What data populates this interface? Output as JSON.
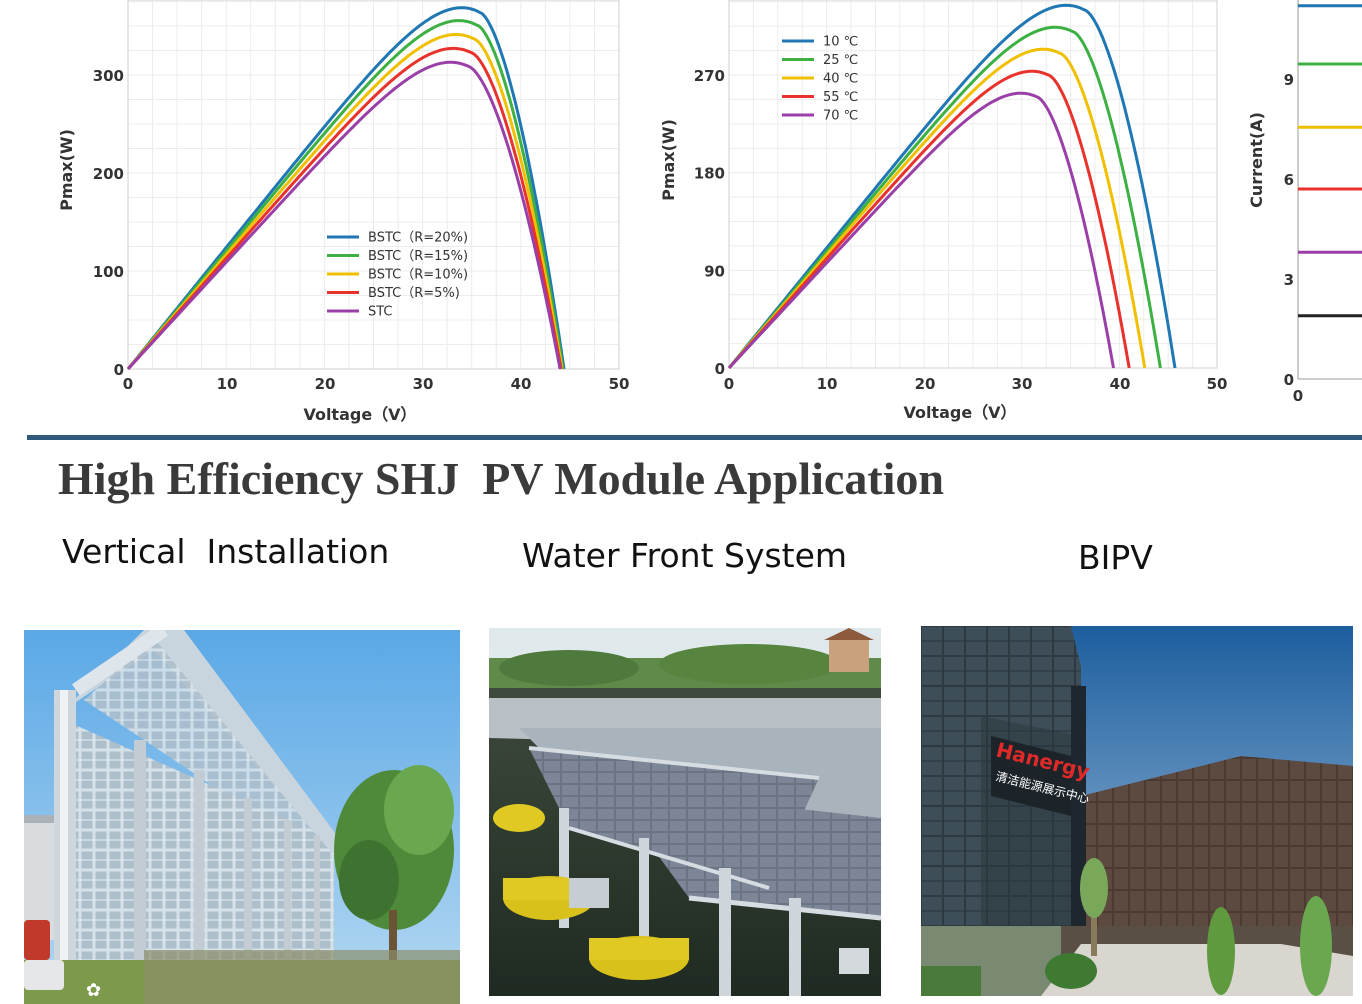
{
  "chart_data": [
    {
      "type": "line",
      "title": "",
      "xlabel": "Voltage（V）",
      "ylabel": "Pmax(W)",
      "xlim": [
        0,
        50
      ],
      "ylim": [
        0,
        380
      ],
      "xticks": [
        "0",
        "10",
        "20",
        "30",
        "40",
        "50"
      ],
      "yticks": [
        "0",
        "100",
        "200",
        "300"
      ],
      "grid": true,
      "legend": "center",
      "series": [
        {
          "name": "BSTC（R=20%)",
          "color": "#1f77b4",
          "vmp": 35.8,
          "pmax": 364,
          "voc": 44.4
        },
        {
          "name": "BSTC（R=15%)",
          "color": "#3cb043",
          "vmp": 35.5,
          "pmax": 351,
          "voc": 44.3
        },
        {
          "name": "BSTC（R=10%)",
          "color": "#f0c000",
          "vmp": 35.2,
          "pmax": 337,
          "voc": 44.2
        },
        {
          "name": "BSTC（R=5%)",
          "color": "#e8322b",
          "vmp": 34.9,
          "pmax": 323,
          "voc": 44.1
        },
        {
          "name": "STC",
          "color": "#9b3fa8",
          "vmp": 34.6,
          "pmax": 309,
          "voc": 44.0
        }
      ]
    },
    {
      "type": "line",
      "title": "",
      "xlabel": "Voltage（V）",
      "ylabel": "Pmax(W)",
      "xlim": [
        0,
        50
      ],
      "ylim": [
        0,
        370
      ],
      "xticks": [
        "0",
        "10",
        "20",
        "30",
        "40",
        "50"
      ],
      "yticks": [
        "0",
        "90",
        "180",
        "270"
      ],
      "grid": true,
      "legend": "top-left",
      "series": [
        {
          "name": "10 ℃",
          "color": "#1f77b4",
          "vmp": 36.4,
          "pmax": 330,
          "voc": 45.7
        },
        {
          "name": "25 ℃",
          "color": "#3cb043",
          "vmp": 35.2,
          "pmax": 310,
          "voc": 44.2
        },
        {
          "name": "40 ℃",
          "color": "#f0c000",
          "vmp": 33.9,
          "pmax": 290,
          "voc": 42.6
        },
        {
          "name": "55 ℃",
          "color": "#e8322b",
          "vmp": 32.7,
          "pmax": 270,
          "voc": 41.0
        },
        {
          "name": "70 ℃",
          "color": "#9b3fa8",
          "vmp": 31.5,
          "pmax": 250,
          "voc": 39.4
        }
      ]
    },
    {
      "type": "line",
      "title": "",
      "xlabel": "",
      "ylabel": "Current(A)",
      "xlim": [
        0,
        20
      ],
      "ylim": [
        0,
        11.5
      ],
      "xticks": [
        "0"
      ],
      "yticks": [
        "0",
        "3",
        "6",
        "9"
      ],
      "grid": false,
      "legend": "none",
      "series": [
        {
          "color": "#1f77b4",
          "current": 11.2
        },
        {
          "color": "#3cb043",
          "current": 9.45
        },
        {
          "color": "#f0c000",
          "current": 7.55
        },
        {
          "color": "#e8322b",
          "current": 5.7
        },
        {
          "color": "#9b3fa8",
          "current": 3.8
        },
        {
          "color": "#222222",
          "current": 1.9
        }
      ]
    }
  ],
  "section": {
    "headline": "High Efficiency SHJ  PV Module Application"
  },
  "applications": [
    {
      "caption": "Vertical  Installation",
      "photo_icon": "vertical-solar-fence-photo"
    },
    {
      "caption": "Water Front System",
      "photo_icon": "floating-solar-array-photo"
    },
    {
      "caption": "BIPV",
      "photo_icon": "bipv-building-photo"
    }
  ],
  "building_sign": {
    "brand": "Hanergy",
    "chinese": "清洁能源展示中心"
  },
  "colors": {
    "divider": "#2f5a7e",
    "headline": "#3a3a3a",
    "grid": "#ececec",
    "axis": "#cfcfcf"
  }
}
